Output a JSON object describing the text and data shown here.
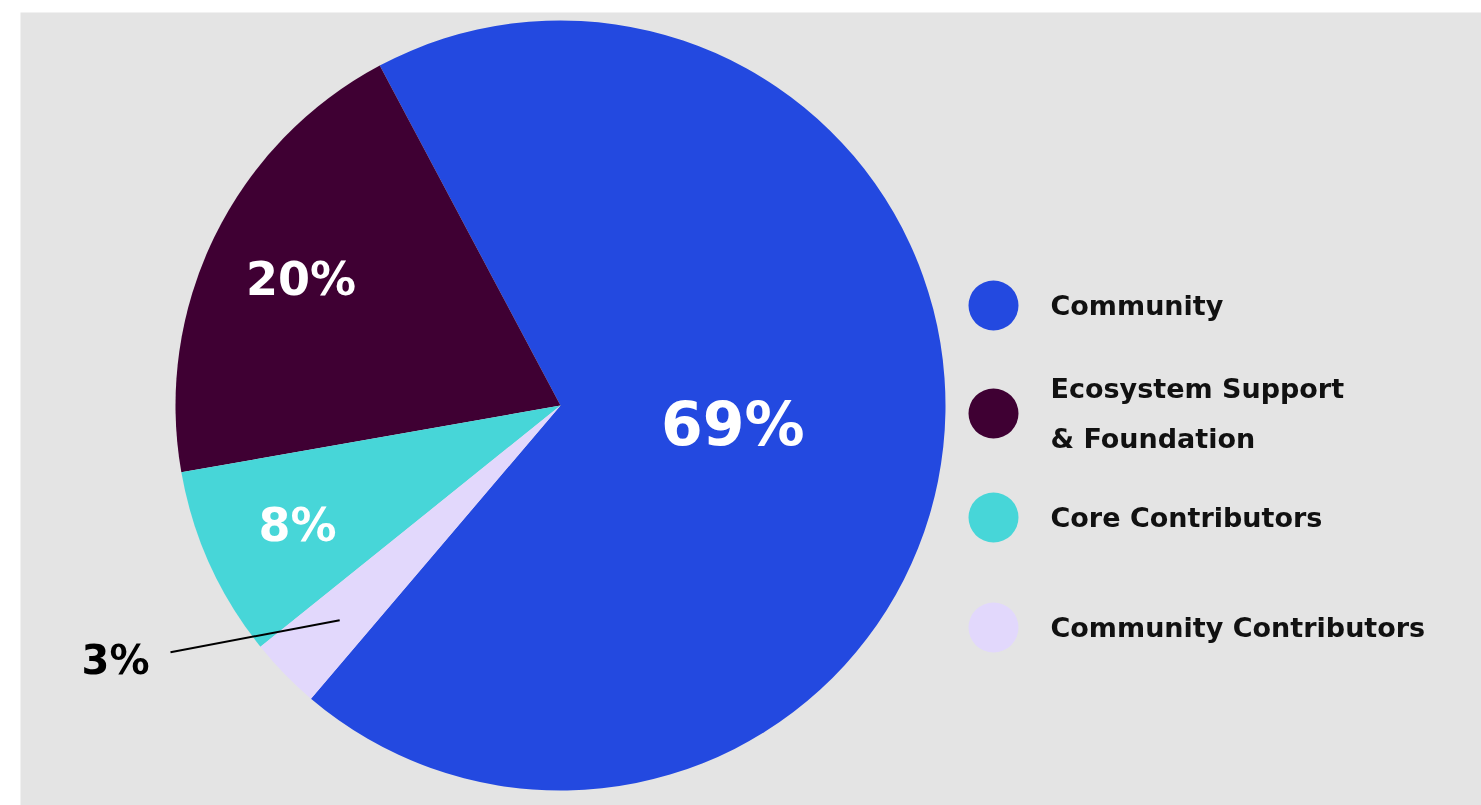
{
  "chart_data": {
    "type": "pie",
    "categories": [
      "Community",
      "Ecosystem Support\n& Foundation",
      "Core Contributors",
      "Community Contributors"
    ],
    "values": [
      69,
      20,
      8,
      3
    ],
    "colors": [
      "#2349e0",
      "#3f0033",
      "#47d6d8",
      "#e2d8fc"
    ],
    "value_labels": [
      "69%",
      "20%",
      "8%",
      "3%"
    ],
    "legend": "right"
  }
}
